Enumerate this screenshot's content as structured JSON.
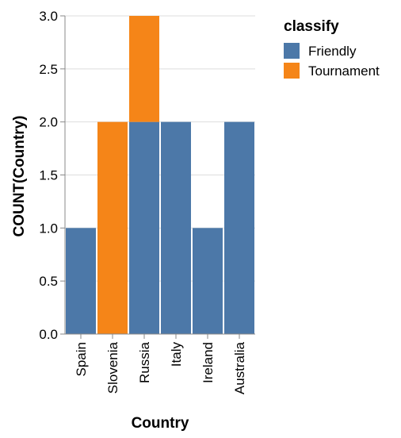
{
  "chart_data": {
    "type": "bar",
    "stacked": true,
    "categories": [
      "Spain",
      "Slovenia",
      "Russia",
      "Italy",
      "Ireland",
      "Australia"
    ],
    "series": [
      {
        "name": "Friendly",
        "values": [
          1,
          0,
          2,
          2,
          1,
          2
        ],
        "color": "#4c78a8"
      },
      {
        "name": "Tournament",
        "values": [
          0,
          2,
          1,
          0,
          0,
          0
        ],
        "color": "#f58518"
      }
    ],
    "xlabel": "Country",
    "ylabel": "COUNT(Country)",
    "ylim": [
      0,
      3
    ],
    "yticks": [
      "0.0",
      "0.5",
      "1.0",
      "1.5",
      "2.0",
      "2.5",
      "3.0"
    ],
    "grid": true,
    "legend": {
      "title": "classify",
      "placement": "top-right"
    }
  }
}
